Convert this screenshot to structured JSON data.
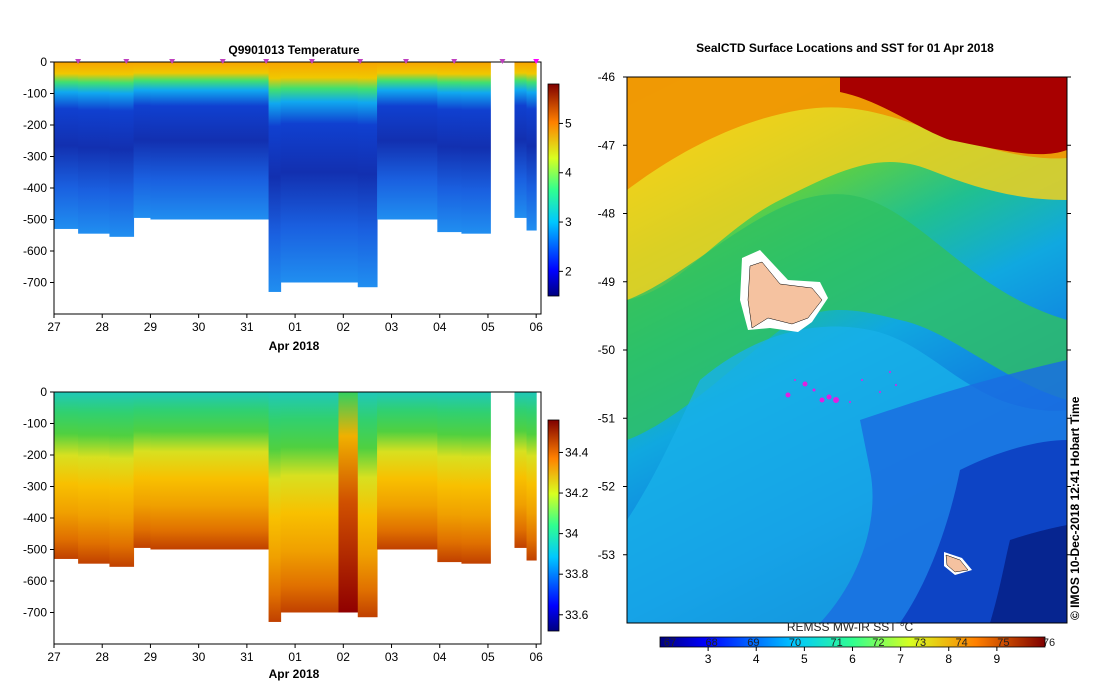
{
  "chart_data": [
    {
      "type": "heatmap",
      "title": "Q9901013  Temperature",
      "xlabel": "Apr 2018",
      "ylabel": "",
      "x_ticks": [
        "27",
        "28",
        "29",
        "30",
        "31",
        "01",
        "02",
        "03",
        "04",
        "05",
        "06"
      ],
      "y_ticks": [
        "0",
        "-100",
        "-200",
        "-300",
        "-400",
        "-500",
        "-600",
        "-700"
      ],
      "ylim": [
        -800,
        0
      ],
      "xlim_days": [
        0,
        10.1
      ],
      "colorbar_ticks": [
        2,
        3,
        4,
        5
      ],
      "colorbar_range": [
        1.5,
        5.8
      ],
      "profile_marker_days": [
        0.5,
        1.5,
        2.45,
        3.5,
        4.4,
        5.35,
        6.35,
        7.3,
        8.3,
        9.3,
        10.0
      ],
      "column_days": [
        0,
        0.5,
        1.15,
        1.65,
        2.0,
        2.5,
        3.0,
        3.5,
        4.0,
        4.45,
        4.7,
        5.1,
        5.5,
        5.9,
        6.3,
        6.7,
        7.1,
        7.5,
        7.95,
        8.45,
        9.05,
        9.55,
        9.8,
        10.0
      ],
      "column_max_depth": [
        -530,
        -545,
        -555,
        -495,
        -500,
        -500,
        -500,
        -500,
        -500,
        -730,
        -700,
        -700,
        -700,
        -700,
        -715,
        -500,
        -500,
        -500,
        -540,
        -545,
        null,
        -495,
        -535
      ],
      "colormap": "jet"
    },
    {
      "type": "heatmap",
      "title": "",
      "xlabel": "Apr 2018",
      "ylabel": "",
      "x_ticks": [
        "27",
        "28",
        "29",
        "30",
        "31",
        "01",
        "02",
        "03",
        "04",
        "05",
        "06"
      ],
      "y_ticks": [
        "0",
        "-100",
        "-200",
        "-300",
        "-400",
        "-500",
        "-600",
        "-700"
      ],
      "ylim": [
        -800,
        0
      ],
      "colorbar_ticks": [
        "33.6",
        "33.8",
        "34",
        "34.2",
        "34.4"
      ],
      "colorbar_range": [
        33.52,
        34.56
      ],
      "colormap": "jet"
    },
    {
      "type": "heatmap",
      "title": "SealCTD Surface Locations and SST for 01 Apr 2018",
      "y_ticks": [
        "-46",
        "-47",
        "-48",
        "-49",
        "-50",
        "-51",
        "-52",
        "-53"
      ],
      "ylim": [
        -54,
        -46
      ],
      "colorbar_label": "REMSS MW-IR SST °C",
      "colorbar_ticks_c": [
        "3",
        "4",
        "5",
        "6",
        "7",
        "8",
        "9"
      ],
      "colorbar_ticks_f": [
        "67",
        "68",
        "69",
        "70",
        "71",
        "72",
        "73",
        "74",
        "75",
        "76"
      ],
      "colorbar_range_c": [
        2,
        10
      ],
      "colormap": "jet",
      "markers": "magenta dots"
    }
  ],
  "credit": "© IMOS 10-Dec-2018 12:41 Hobart Time"
}
